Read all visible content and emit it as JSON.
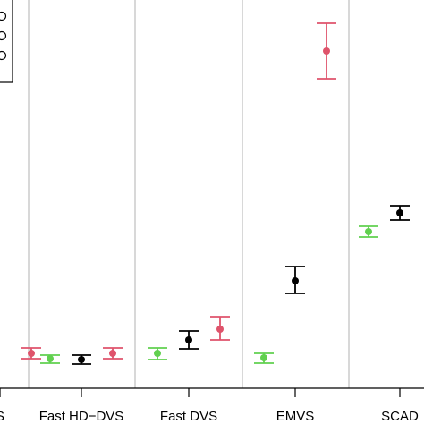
{
  "chart_data": {
    "type": "scatter",
    "description_kind": "point estimates with error bars, grouped by method",
    "categories": [
      "S",
      "Fast HD−DVS",
      "Fast DVS",
      "EMVS",
      "SCAD"
    ],
    "series": [
      {
        "color": "#61D04F",
        "values": [
          null,
          401,
          395,
          400,
          259
        ],
        "lower": [
          null,
          397,
          389,
          395,
          253
        ],
        "upper": [
          null,
          406,
          402,
          406,
          265
        ]
      },
      {
        "color": "#000000",
        "values": [
          null,
          402,
          380,
          314,
          238
        ],
        "lower": [
          null,
          397,
          370,
          298,
          230
        ],
        "upper": [
          null,
          407,
          390,
          328,
          246
        ]
      },
      {
        "color": "#DF536B",
        "values": [
          395,
          395,
          368,
          57,
          null
        ],
        "lower": [
          389,
          389,
          354,
          26,
          null
        ],
        "upper": [
          401,
          401,
          380,
          88,
          null
        ]
      }
    ],
    "y_axis_orientation": "inverted",
    "ylim": [
      0,
      434
    ],
    "grid": "vertical separators between groups",
    "legend_position": "top-left (partially visible)"
  }
}
